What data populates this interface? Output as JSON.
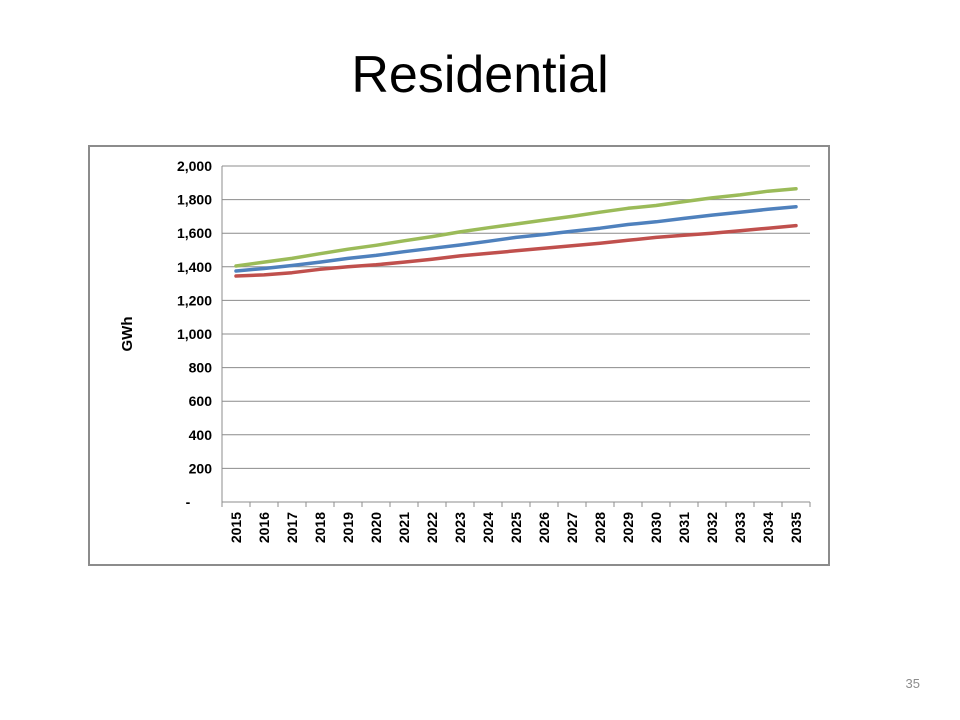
{
  "slide": {
    "title": "Residential",
    "page_number": "35"
  },
  "chart_data": {
    "type": "line",
    "title": "",
    "xlabel": "",
    "ylabel": "GWh",
    "ylim": [
      0,
      2000
    ],
    "y_ticks": [
      0,
      200,
      400,
      600,
      800,
      1000,
      1200,
      1400,
      1600,
      1800,
      2000
    ],
    "y_tick_labels": [
      "-",
      "200",
      "400",
      "600",
      "800",
      "1,000",
      "1,200",
      "1,400",
      "1,600",
      "1,800",
      "2,000"
    ],
    "grid": true,
    "legend": "none",
    "categories": [
      "2015",
      "2016",
      "2017",
      "2018",
      "2019",
      "2020",
      "2021",
      "2022",
      "2023",
      "2024",
      "2025",
      "2026",
      "2027",
      "2028",
      "2029",
      "2030",
      "2031",
      "2032",
      "2033",
      "2034",
      "2035"
    ],
    "series": [
      {
        "color": "#9bbb59",
        "values": [
          1405,
          1428,
          1450,
          1478,
          1505,
          1528,
          1555,
          1580,
          1608,
          1632,
          1655,
          1678,
          1700,
          1725,
          1748,
          1765,
          1788,
          1810,
          1828,
          1850,
          1865
        ]
      },
      {
        "color": "#4f81bd",
        "values": [
          1375,
          1390,
          1408,
          1428,
          1450,
          1468,
          1490,
          1510,
          1530,
          1552,
          1575,
          1592,
          1612,
          1630,
          1652,
          1668,
          1688,
          1708,
          1725,
          1742,
          1758
        ]
      },
      {
        "color": "#c0504d",
        "values": [
          1345,
          1352,
          1365,
          1385,
          1400,
          1412,
          1428,
          1445,
          1465,
          1480,
          1495,
          1510,
          1525,
          1540,
          1558,
          1575,
          1588,
          1600,
          1615,
          1630,
          1645
        ]
      }
    ]
  }
}
